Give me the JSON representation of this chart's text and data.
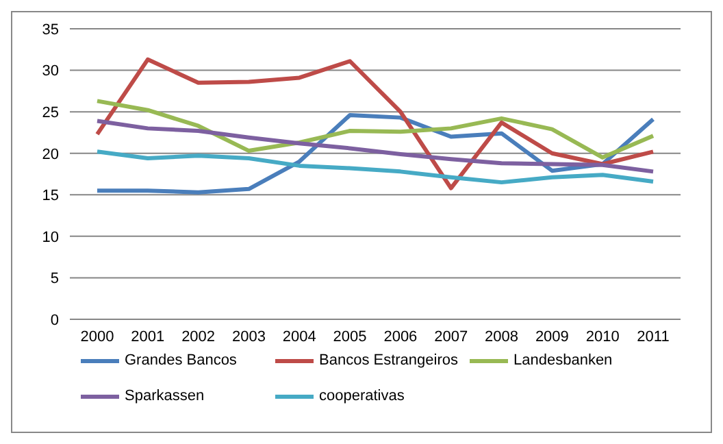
{
  "chart_data": {
    "type": "line",
    "categories": [
      "2000",
      "2001",
      "2002",
      "2003",
      "2004",
      "2005",
      "2006",
      "2007",
      "2008",
      "2009",
      "2010",
      "2011"
    ],
    "series": [
      {
        "name": "Grandes Bancos",
        "color": "#4a7ebb",
        "values": [
          15.5,
          15.5,
          15.3,
          15.7,
          19,
          24.6,
          24.3,
          22,
          22.4,
          17.9,
          18.7,
          24.1
        ]
      },
      {
        "name": "Bancos Estrangeiros",
        "color": "#be4b48",
        "values": [
          22.3,
          31.3,
          28.5,
          28.6,
          29.1,
          31.1,
          25,
          15.8,
          23.7,
          20,
          18.7,
          20.2
        ]
      },
      {
        "name": "Landesbanken",
        "color": "#98b954",
        "values": [
          26.3,
          25.2,
          23.3,
          20.3,
          21.3,
          22.7,
          22.6,
          23,
          24.2,
          22.9,
          19.5,
          22.1
        ]
      },
      {
        "name": "Sparkassen",
        "color": "#7d60a0",
        "values": [
          23.9,
          23,
          22.7,
          21.9,
          21.2,
          20.6,
          19.9,
          19.3,
          18.8,
          18.7,
          18.6,
          17.8
        ]
      },
      {
        "name": "cooperativas",
        "color": "#46aac5",
        "values": [
          20.2,
          19.4,
          19.7,
          19.4,
          18.5,
          18.2,
          17.8,
          17.1,
          16.5,
          17.1,
          17.4,
          16.6
        ]
      }
    ],
    "ylim": [
      0,
      35
    ],
    "yticks": [
      0,
      5,
      10,
      15,
      20,
      25,
      30,
      35
    ],
    "grid": "y",
    "legend": "bottom",
    "marker": "none",
    "line_style": "solid"
  }
}
